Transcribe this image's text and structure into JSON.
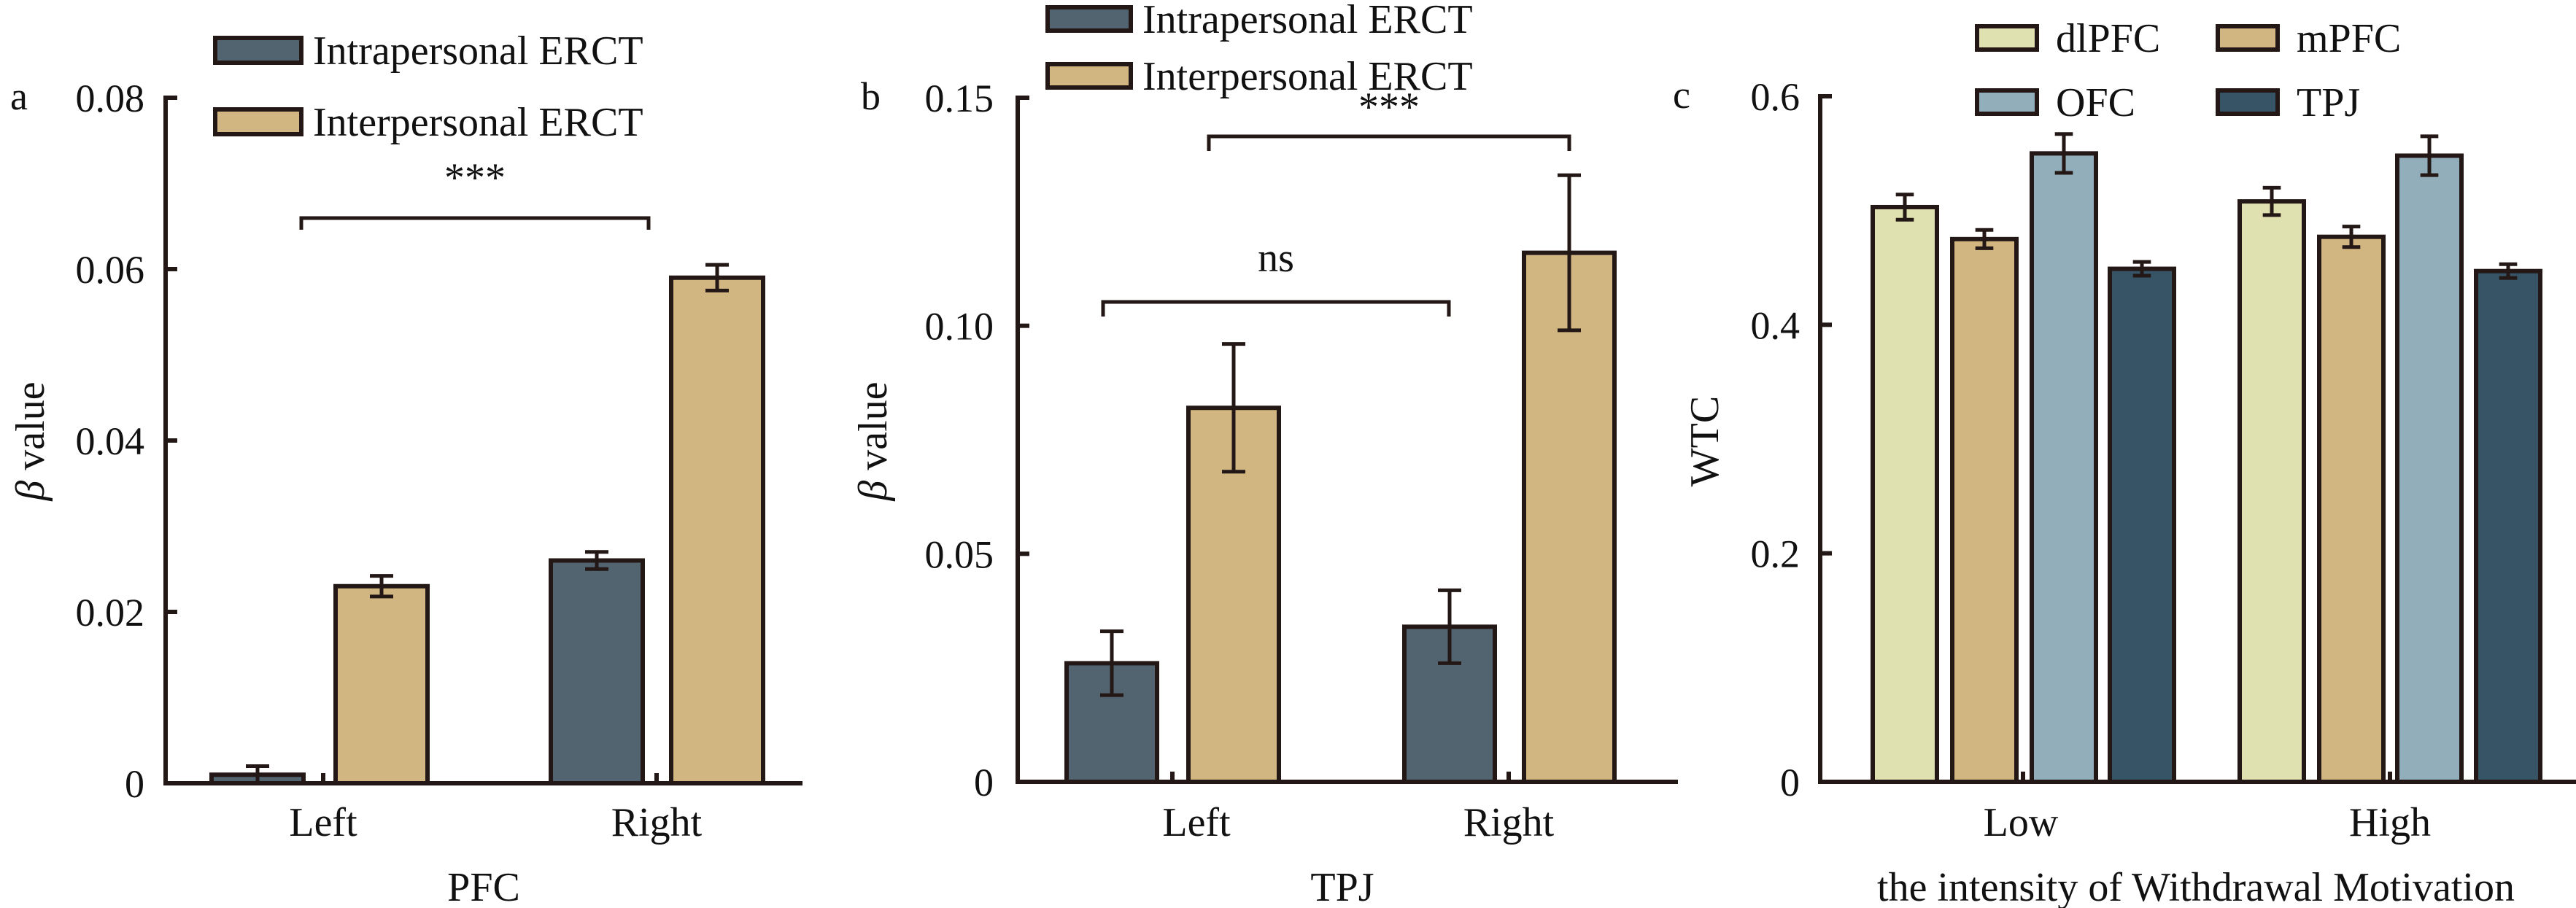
{
  "chart_data": [
    {
      "panel": "a",
      "type": "bar",
      "title": "",
      "xlabel": "PFC",
      "ylabel": "β value",
      "ylabel_symbol": "β",
      "ylabel_rest": " value",
      "ylim": [
        0,
        0.08
      ],
      "yticks": [
        0,
        0.02,
        0.04,
        0.06,
        0.08
      ],
      "ytick_labels": [
        "0",
        "0.02",
        "0.04",
        "0.06",
        "0.08"
      ],
      "categories": [
        "Left",
        "Right"
      ],
      "legend_position": "top-left",
      "grid": false,
      "series": [
        {
          "name": "Intrapersonal ERCT",
          "color": "#526470",
          "values": [
            0.001,
            0.026
          ],
          "errors": [
            0.001,
            0.001
          ]
        },
        {
          "name": "Interpersonal ERCT",
          "color": "#D2B682",
          "values": [
            0.023,
            0.059
          ],
          "errors": [
            0.0012,
            0.0015
          ]
        }
      ],
      "annotations": [
        {
          "text": "***",
          "from": "Left",
          "to": "Right",
          "series": "Interpersonal ERCT"
        }
      ]
    },
    {
      "panel": "b",
      "type": "bar",
      "title": "",
      "xlabel": "TPJ",
      "ylabel": "β value",
      "ylabel_symbol": "β",
      "ylabel_rest": " value",
      "ylim": [
        0,
        0.15
      ],
      "yticks": [
        0,
        0.05,
        0.1,
        0.15
      ],
      "ytick_labels": [
        "0",
        "0.05",
        "0.10",
        "0.15"
      ],
      "categories": [
        "Left",
        "Right"
      ],
      "legend_position": "top-left",
      "grid": false,
      "series": [
        {
          "name": "Intrapersonal ERCT",
          "color": "#526470",
          "values": [
            0.026,
            0.034
          ],
          "errors": [
            0.007,
            0.008
          ]
        },
        {
          "name": "Interpersonal ERCT",
          "color": "#D2B682",
          "values": [
            0.082,
            0.116
          ],
          "errors": [
            0.014,
            0.017
          ]
        }
      ],
      "annotations": [
        {
          "text": "ns",
          "from": "Left",
          "to": "Right",
          "series": "Intrapersonal ERCT"
        },
        {
          "text": "***",
          "from": "Left",
          "to": "Right",
          "series": "Interpersonal ERCT"
        }
      ]
    },
    {
      "panel": "c",
      "type": "bar",
      "title": "",
      "xlabel": "the intensity of Withdrawal Motivation",
      "ylabel": "WTC",
      "ylim": [
        0,
        0.6
      ],
      "yticks": [
        0,
        0.2,
        0.4,
        0.6
      ],
      "ytick_labels": [
        "0",
        "0.2",
        "0.4",
        "0.6"
      ],
      "categories": [
        "Low",
        "High"
      ],
      "legend_position": "top-center",
      "grid": false,
      "series": [
        {
          "name": "dlPFC",
          "color": "#DFE2B0",
          "values": [
            0.503,
            0.508
          ],
          "errors": [
            0.011,
            0.012
          ]
        },
        {
          "name": "mPFC",
          "color": "#D2B682",
          "values": [
            0.475,
            0.477
          ],
          "errors": [
            0.008,
            0.009
          ]
        },
        {
          "name": "OFC",
          "color": "#91AEBA",
          "values": [
            0.55,
            0.548
          ],
          "errors": [
            0.017,
            0.017
          ]
        },
        {
          "name": "TPJ",
          "color": "#375366",
          "values": [
            0.449,
            0.447
          ],
          "errors": [
            0.006,
            0.006
          ]
        }
      ],
      "annotations": []
    }
  ]
}
